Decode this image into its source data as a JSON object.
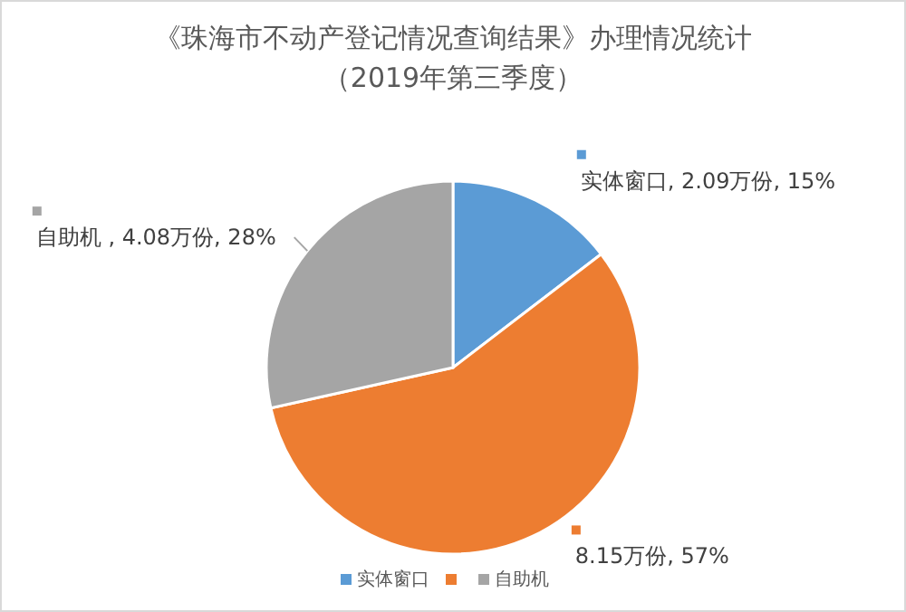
{
  "chart_data": {
    "type": "pie",
    "title": "《珠海市不动产登记情况查询结果》办理情况统计",
    "subtitle": "（2019年第三季度）",
    "categories": [
      "实体窗口",
      null,
      "自助机"
    ],
    "values": [
      2.09,
      8.15,
      4.08
    ],
    "value_labels": [
      "实体窗口, 2.09万份, 15%",
      "8.15万份, 57%",
      "自助机 , 4.08万份, 28%"
    ],
    "colors": [
      "#5b9bd5",
      "#ed7d31",
      "#a5a5a5"
    ],
    "legend": "bottom"
  }
}
